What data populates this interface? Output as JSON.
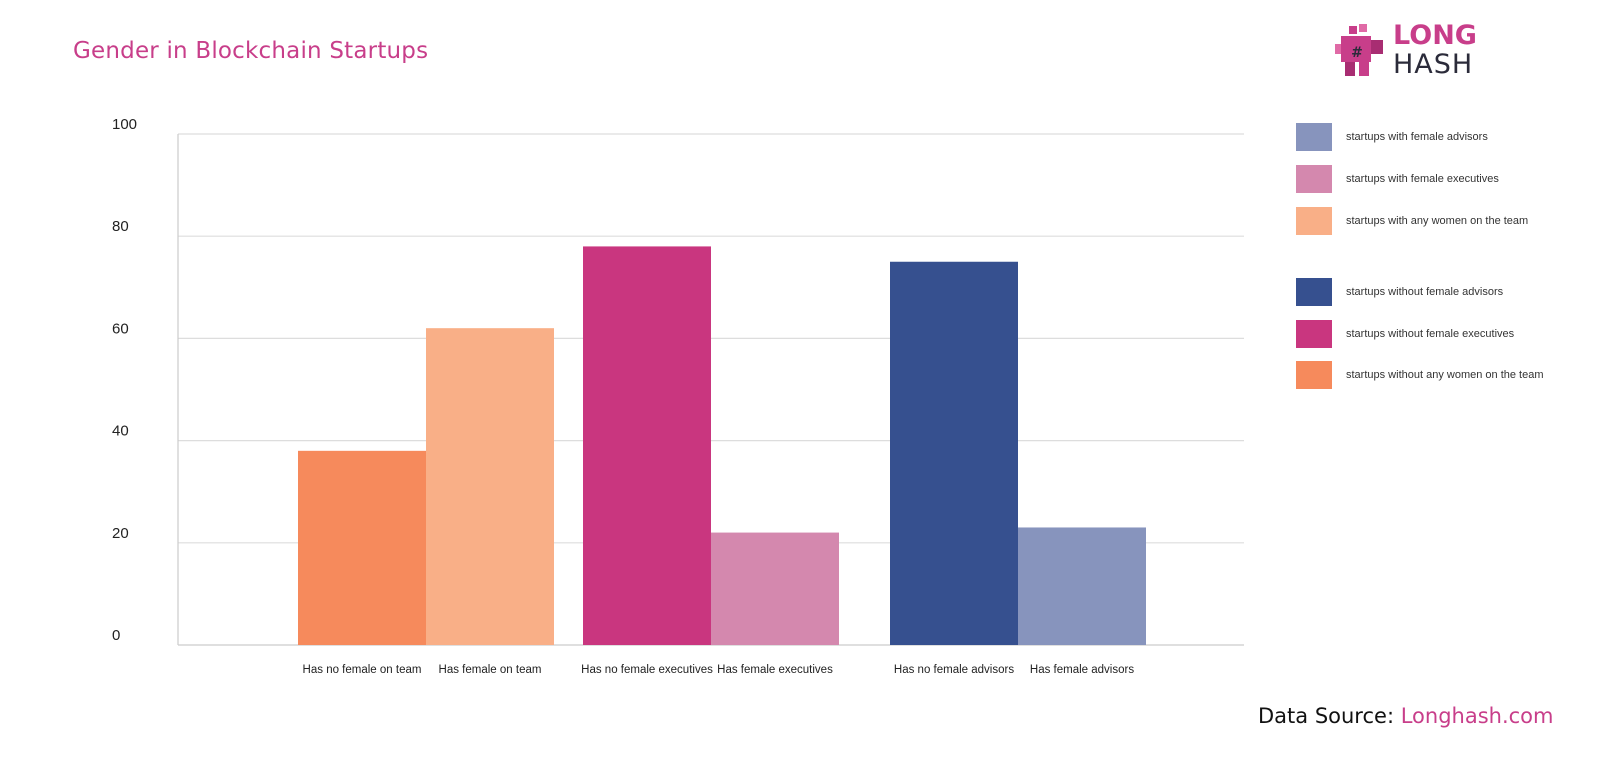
{
  "title": "Gender in Blockchain Startups",
  "logo": {
    "word1": "LONG",
    "word2": "HASH"
  },
  "source": {
    "label": "Data Source: ",
    "link": "Longhash.com"
  },
  "colors": {
    "title": "#c83e8a",
    "grid": "#dddddd",
    "axis": "#cccccc"
  },
  "chart_data": {
    "type": "bar",
    "title": "Gender in Blockchain Startups",
    "xlabel": "",
    "ylabel": "",
    "ylim": [
      0,
      100
    ],
    "yticks": [
      0,
      20,
      40,
      60,
      80,
      100
    ],
    "grid": true,
    "legend_position": "right",
    "bars": [
      {
        "label": "Has no female on team",
        "value": 38,
        "group": 0,
        "color": "#f68a5c"
      },
      {
        "label": "Has female on team",
        "value": 62,
        "group": 0,
        "color": "#f9af87"
      },
      {
        "label": "Has no female executives",
        "value": 78,
        "group": 1,
        "color": "#c9367f"
      },
      {
        "label": "Has female executives",
        "value": 22,
        "group": 1,
        "color": "#d488ae"
      },
      {
        "label": "Has no female advisors",
        "value": 75,
        "group": 2,
        "color": "#36508f"
      },
      {
        "label": "Has female advisors",
        "value": 23,
        "group": 2,
        "color": "#8794bd"
      }
    ],
    "legend": [
      {
        "label": "startups with female advisors",
        "color": "#8794bd"
      },
      {
        "label": "startups with female executives",
        "color": "#d488ae"
      },
      {
        "label": "startups with any women on the team",
        "color": "#f9af87"
      },
      {
        "label": "startups without female advisors",
        "color": "#36508f"
      },
      {
        "label": "startups without female executives",
        "color": "#c9367f"
      },
      {
        "label": "startups without any women on the team",
        "color": "#f68a5c"
      }
    ]
  }
}
